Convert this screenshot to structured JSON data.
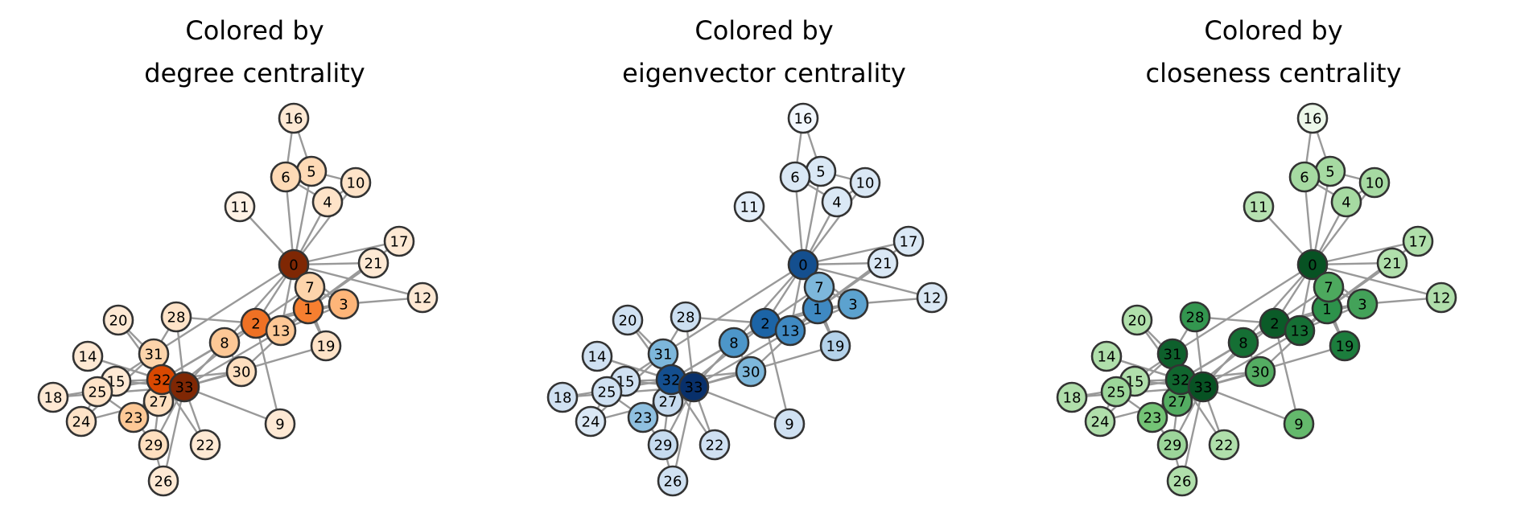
{
  "panels": [
    {
      "id": "degree",
      "title_line1": "Colored by",
      "title_line2": "degree centrality",
      "colormap": "Oranges"
    },
    {
      "id": "eigenvector",
      "title_line1": "Colored by",
      "title_line2": "eigenvector centrality",
      "colormap": "Blues"
    },
    {
      "id": "closeness",
      "title_line1": "Colored by",
      "title_line2": "closeness centrality",
      "colormap": "Greens"
    }
  ],
  "nodes": [
    {
      "id": "0",
      "degree": 1.0,
      "eigenvector": 0.88,
      "closeness": 0.95
    },
    {
      "id": "1",
      "degree": 0.55,
      "eigenvector": 0.65,
      "closeness": 0.72
    },
    {
      "id": "2",
      "degree": 0.6,
      "eigenvector": 0.8,
      "closeness": 0.92
    },
    {
      "id": "3",
      "degree": 0.35,
      "eigenvector": 0.55,
      "closeness": 0.65
    },
    {
      "id": "4",
      "degree": 0.12,
      "eigenvector": 0.15,
      "closeness": 0.35
    },
    {
      "id": "5",
      "degree": 0.18,
      "eigenvector": 0.15,
      "closeness": 0.35
    },
    {
      "id": "6",
      "degree": 0.18,
      "eigenvector": 0.15,
      "closeness": 0.35
    },
    {
      "id": "7",
      "degree": 0.22,
      "eigenvector": 0.45,
      "closeness": 0.62
    },
    {
      "id": "8",
      "degree": 0.28,
      "eigenvector": 0.6,
      "closeness": 0.85
    },
    {
      "id": "9",
      "degree": 0.08,
      "eigenvector": 0.2,
      "closeness": 0.55
    },
    {
      "id": "10",
      "degree": 0.12,
      "eigenvector": 0.15,
      "closeness": 0.35
    },
    {
      "id": "11",
      "degree": 0.02,
      "eigenvector": 0.1,
      "closeness": 0.3
    },
    {
      "id": "12",
      "degree": 0.08,
      "eigenvector": 0.15,
      "closeness": 0.32
    },
    {
      "id": "13",
      "degree": 0.28,
      "eigenvector": 0.65,
      "closeness": 0.85
    },
    {
      "id": "14",
      "degree": 0.08,
      "eigenvector": 0.2,
      "closeness": 0.32
    },
    {
      "id": "15",
      "degree": 0.08,
      "eigenvector": 0.2,
      "closeness": 0.32
    },
    {
      "id": "16",
      "degree": 0.08,
      "eigenvector": 0.02,
      "closeness": 0.05
    },
    {
      "id": "17",
      "degree": 0.08,
      "eigenvector": 0.15,
      "closeness": 0.32
    },
    {
      "id": "18",
      "degree": 0.08,
      "eigenvector": 0.2,
      "closeness": 0.32
    },
    {
      "id": "19",
      "degree": 0.12,
      "eigenvector": 0.3,
      "closeness": 0.8
    },
    {
      "id": "20",
      "degree": 0.08,
      "eigenvector": 0.2,
      "closeness": 0.32
    },
    {
      "id": "21",
      "degree": 0.08,
      "eigenvector": 0.15,
      "closeness": 0.32
    },
    {
      "id": "22",
      "degree": 0.08,
      "eigenvector": 0.2,
      "closeness": 0.32
    },
    {
      "id": "23",
      "degree": 0.28,
      "eigenvector": 0.4,
      "closeness": 0.5
    },
    {
      "id": "24",
      "degree": 0.12,
      "eigenvector": 0.15,
      "closeness": 0.32
    },
    {
      "id": "25",
      "degree": 0.12,
      "eigenvector": 0.2,
      "closeness": 0.38
    },
    {
      "id": "26",
      "degree": 0.08,
      "eigenvector": 0.2,
      "closeness": 0.32
    },
    {
      "id": "27",
      "degree": 0.15,
      "eigenvector": 0.25,
      "closeness": 0.6
    },
    {
      "id": "28",
      "degree": 0.12,
      "eigenvector": 0.22,
      "closeness": 0.7
    },
    {
      "id": "29",
      "degree": 0.15,
      "eigenvector": 0.25,
      "closeness": 0.38
    },
    {
      "id": "30",
      "degree": 0.15,
      "eigenvector": 0.45,
      "closeness": 0.6
    },
    {
      "id": "31",
      "degree": 0.22,
      "eigenvector": 0.45,
      "closeness": 0.9
    },
    {
      "id": "32",
      "degree": 0.75,
      "eigenvector": 0.88,
      "closeness": 0.88
    },
    {
      "id": "33",
      "degree": 1.0,
      "eigenvector": 1.0,
      "closeness": 0.95
    }
  ],
  "edges": [
    [
      "0",
      "1"
    ],
    [
      "0",
      "2"
    ],
    [
      "0",
      "3"
    ],
    [
      "0",
      "4"
    ],
    [
      "0",
      "5"
    ],
    [
      "0",
      "6"
    ],
    [
      "0",
      "7"
    ],
    [
      "0",
      "8"
    ],
    [
      "0",
      "10"
    ],
    [
      "0",
      "11"
    ],
    [
      "0",
      "12"
    ],
    [
      "0",
      "13"
    ],
    [
      "0",
      "17"
    ],
    [
      "0",
      "19"
    ],
    [
      "0",
      "21"
    ],
    [
      "0",
      "31"
    ],
    [
      "1",
      "2"
    ],
    [
      "1",
      "3"
    ],
    [
      "1",
      "7"
    ],
    [
      "1",
      "13"
    ],
    [
      "1",
      "17"
    ],
    [
      "1",
      "19"
    ],
    [
      "1",
      "21"
    ],
    [
      "1",
      "30"
    ],
    [
      "2",
      "3"
    ],
    [
      "2",
      "7"
    ],
    [
      "2",
      "8"
    ],
    [
      "2",
      "9"
    ],
    [
      "2",
      "13"
    ],
    [
      "2",
      "27"
    ],
    [
      "2",
      "28"
    ],
    [
      "2",
      "32"
    ],
    [
      "3",
      "7"
    ],
    [
      "3",
      "12"
    ],
    [
      "3",
      "13"
    ],
    [
      "4",
      "6"
    ],
    [
      "4",
      "10"
    ],
    [
      "5",
      "6"
    ],
    [
      "5",
      "10"
    ],
    [
      "5",
      "16"
    ],
    [
      "6",
      "16"
    ],
    [
      "8",
      "30"
    ],
    [
      "8",
      "32"
    ],
    [
      "8",
      "33"
    ],
    [
      "9",
      "33"
    ],
    [
      "13",
      "33"
    ],
    [
      "14",
      "32"
    ],
    [
      "14",
      "33"
    ],
    [
      "15",
      "32"
    ],
    [
      "15",
      "33"
    ],
    [
      "18",
      "32"
    ],
    [
      "18",
      "33"
    ],
    [
      "19",
      "33"
    ],
    [
      "20",
      "32"
    ],
    [
      "20",
      "33"
    ],
    [
      "22",
      "32"
    ],
    [
      "22",
      "33"
    ],
    [
      "23",
      "25"
    ],
    [
      "23",
      "27"
    ],
    [
      "23",
      "29"
    ],
    [
      "23",
      "32"
    ],
    [
      "23",
      "33"
    ],
    [
      "24",
      "25"
    ],
    [
      "24",
      "27"
    ],
    [
      "24",
      "31"
    ],
    [
      "25",
      "31"
    ],
    [
      "26",
      "29"
    ],
    [
      "26",
      "33"
    ],
    [
      "27",
      "33"
    ],
    [
      "28",
      "31"
    ],
    [
      "28",
      "33"
    ],
    [
      "29",
      "32"
    ],
    [
      "29",
      "33"
    ],
    [
      "30",
      "32"
    ],
    [
      "30",
      "33"
    ],
    [
      "31",
      "32"
    ],
    [
      "31",
      "33"
    ],
    [
      "32",
      "33"
    ]
  ]
}
